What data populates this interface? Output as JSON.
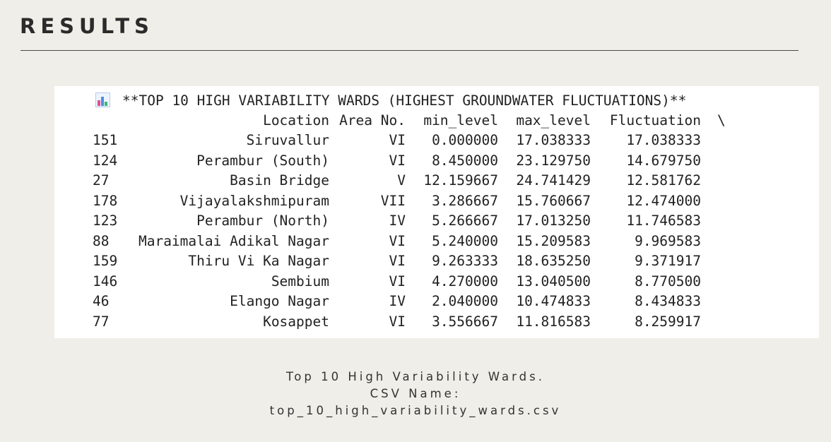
{
  "page": {
    "heading": "RESULTS"
  },
  "output": {
    "title_icon": "bar-chart-emoji-icon",
    "title": "**TOP 10 HIGH VARIABILITY WARDS (HIGHEST GROUNDWATER FLUCTUATIONS)**",
    "headers": {
      "location": "Location",
      "area": "Area No.",
      "min": "min_level",
      "max": "max_level",
      "fluct": "Fluctuation",
      "cont": "\\"
    },
    "rows": [
      {
        "idx": "151",
        "location": "Siruvallur",
        "area": "VI",
        "min": "0.000000",
        "max": "17.038333",
        "fluct": "17.038333"
      },
      {
        "idx": "124",
        "location": "Perambur (South)",
        "area": "VI",
        "min": "8.450000",
        "max": "23.129750",
        "fluct": "14.679750"
      },
      {
        "idx": "27",
        "location": "Basin Bridge",
        "area": "V",
        "min": "12.159667",
        "max": "24.741429",
        "fluct": "12.581762"
      },
      {
        "idx": "178",
        "location": "Vijayalakshmipuram",
        "area": "VII",
        "min": "3.286667",
        "max": "15.760667",
        "fluct": "12.474000"
      },
      {
        "idx": "123",
        "location": "Perambur (North)",
        "area": "IV",
        "min": "5.266667",
        "max": "17.013250",
        "fluct": "11.746583"
      },
      {
        "idx": "88",
        "location": "Maraimalai Adikal Nagar",
        "area": "VI",
        "min": "5.240000",
        "max": "15.209583",
        "fluct": "9.969583"
      },
      {
        "idx": "159",
        "location": "Thiru Vi Ka Nagar",
        "area": "VI",
        "min": "9.263333",
        "max": "18.635250",
        "fluct": "9.371917"
      },
      {
        "idx": "146",
        "location": "Sembium",
        "area": "VI",
        "min": "4.270000",
        "max": "13.040500",
        "fluct": "8.770500"
      },
      {
        "idx": "46",
        "location": "Elango Nagar",
        "area": "IV",
        "min": "2.040000",
        "max": "10.474833",
        "fluct": "8.434833"
      },
      {
        "idx": "77",
        "location": "Kosappet",
        "area": "VI",
        "min": "3.556667",
        "max": "11.816583",
        "fluct": "8.259917"
      }
    ]
  },
  "caption": {
    "line1": "Top 10 High Variability Wards.",
    "line2": "CSV Name:",
    "line3": "top_10_high_variability_wards.csv"
  }
}
